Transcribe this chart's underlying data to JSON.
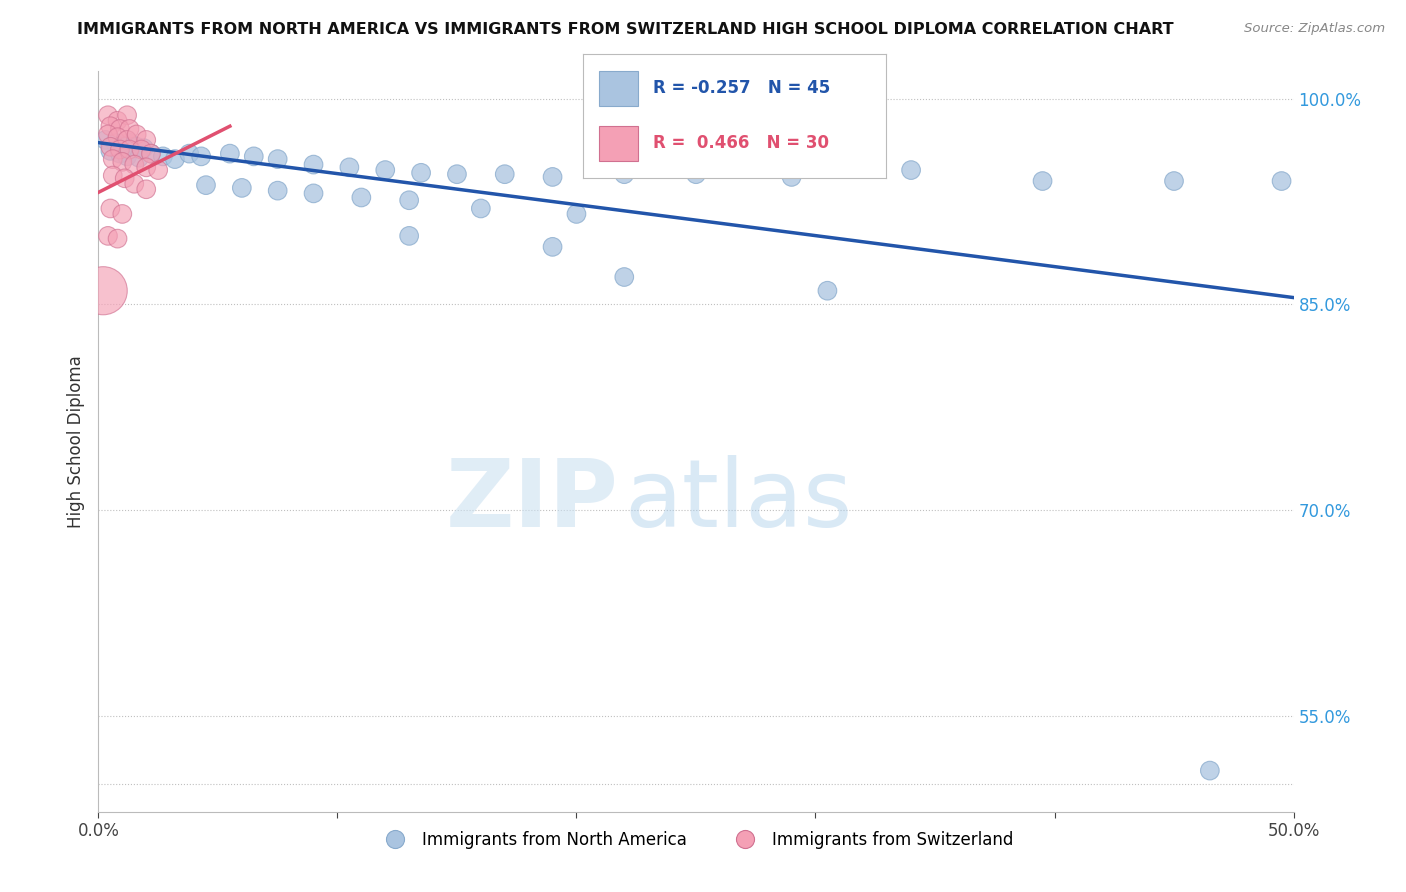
{
  "title": "IMMIGRANTS FROM NORTH AMERICA VS IMMIGRANTS FROM SWITZERLAND HIGH SCHOOL DIPLOMA CORRELATION CHART",
  "source": "Source: ZipAtlas.com",
  "ylabel": "High School Diploma",
  "legend_blue_r": "R = -0.257",
  "legend_blue_n": "N = 45",
  "legend_pink_r": "R =  0.466",
  "legend_pink_n": "N = 30",
  "legend_blue_label": "Immigrants from North America",
  "legend_pink_label": "Immigrants from Switzerland",
  "blue_color": "#aac4e0",
  "pink_color": "#f4a0b5",
  "blue_line_color": "#2255aa",
  "pink_line_color": "#e05070",
  "watermark_zip": "ZIP",
  "watermark_atlas": "atlas",
  "xlim": [
    0.0,
    0.5
  ],
  "ylim": [
    0.48,
    1.02
  ],
  "ytick_vals": [
    0.5,
    0.55,
    0.7,
    0.85,
    1.0
  ],
  "ytick_labels": [
    "",
    "55.0%",
    "70.0%",
    "85.0%",
    "100.0%"
  ],
  "xtick_vals": [
    0.0,
    0.5
  ],
  "xtick_labels": [
    "0.0%",
    "50.0%"
  ],
  "blue_line_x": [
    0.0,
    0.5
  ],
  "blue_line_y": [
    0.968,
    0.855
  ],
  "pink_line_x": [
    -0.002,
    0.055
  ],
  "pink_line_y": [
    0.93,
    0.98
  ],
  "blue_dots": [
    [
      0.003,
      0.97
    ],
    [
      0.007,
      0.968
    ],
    [
      0.01,
      0.966
    ],
    [
      0.013,
      0.968
    ],
    [
      0.016,
      0.965
    ],
    [
      0.019,
      0.964
    ],
    [
      0.005,
      0.962
    ],
    [
      0.009,
      0.96
    ],
    [
      0.012,
      0.958
    ],
    [
      0.017,
      0.957
    ],
    [
      0.022,
      0.96
    ],
    [
      0.027,
      0.958
    ],
    [
      0.032,
      0.956
    ],
    [
      0.038,
      0.96
    ],
    [
      0.043,
      0.958
    ],
    [
      0.055,
      0.96
    ],
    [
      0.065,
      0.958
    ],
    [
      0.075,
      0.956
    ],
    [
      0.09,
      0.952
    ],
    [
      0.105,
      0.95
    ],
    [
      0.12,
      0.948
    ],
    [
      0.135,
      0.946
    ],
    [
      0.15,
      0.945
    ],
    [
      0.17,
      0.945
    ],
    [
      0.19,
      0.943
    ],
    [
      0.22,
      0.945
    ],
    [
      0.25,
      0.945
    ],
    [
      0.29,
      0.943
    ],
    [
      0.34,
      0.948
    ],
    [
      0.395,
      0.94
    ],
    [
      0.45,
      0.94
    ],
    [
      0.495,
      0.94
    ],
    [
      0.045,
      0.937
    ],
    [
      0.06,
      0.935
    ],
    [
      0.075,
      0.933
    ],
    [
      0.09,
      0.931
    ],
    [
      0.11,
      0.928
    ],
    [
      0.13,
      0.926
    ],
    [
      0.16,
      0.92
    ],
    [
      0.2,
      0.916
    ],
    [
      0.13,
      0.9
    ],
    [
      0.19,
      0.892
    ],
    [
      0.22,
      0.87
    ],
    [
      0.305,
      0.86
    ],
    [
      0.465,
      0.51
    ]
  ],
  "blue_dot_sizes_base": 180,
  "pink_dots": [
    [
      0.004,
      0.988
    ],
    [
      0.008,
      0.984
    ],
    [
      0.012,
      0.988
    ],
    [
      0.005,
      0.98
    ],
    [
      0.009,
      0.978
    ],
    [
      0.013,
      0.978
    ],
    [
      0.004,
      0.974
    ],
    [
      0.008,
      0.972
    ],
    [
      0.012,
      0.97
    ],
    [
      0.016,
      0.974
    ],
    [
      0.02,
      0.97
    ],
    [
      0.005,
      0.965
    ],
    [
      0.009,
      0.963
    ],
    [
      0.013,
      0.963
    ],
    [
      0.018,
      0.963
    ],
    [
      0.022,
      0.96
    ],
    [
      0.006,
      0.956
    ],
    [
      0.01,
      0.954
    ],
    [
      0.015,
      0.952
    ],
    [
      0.02,
      0.95
    ],
    [
      0.025,
      0.948
    ],
    [
      0.006,
      0.944
    ],
    [
      0.011,
      0.942
    ],
    [
      0.015,
      0.938
    ],
    [
      0.02,
      0.934
    ],
    [
      0.005,
      0.92
    ],
    [
      0.01,
      0.916
    ],
    [
      0.004,
      0.9
    ],
    [
      0.008,
      0.898
    ],
    [
      0.002,
      0.86
    ]
  ],
  "pink_dot_sizes": [
    180,
    180,
    180,
    180,
    180,
    180,
    180,
    180,
    180,
    180,
    180,
    180,
    180,
    180,
    180,
    180,
    180,
    180,
    180,
    180,
    180,
    180,
    180,
    180,
    180,
    180,
    180,
    180,
    180,
    1200
  ]
}
